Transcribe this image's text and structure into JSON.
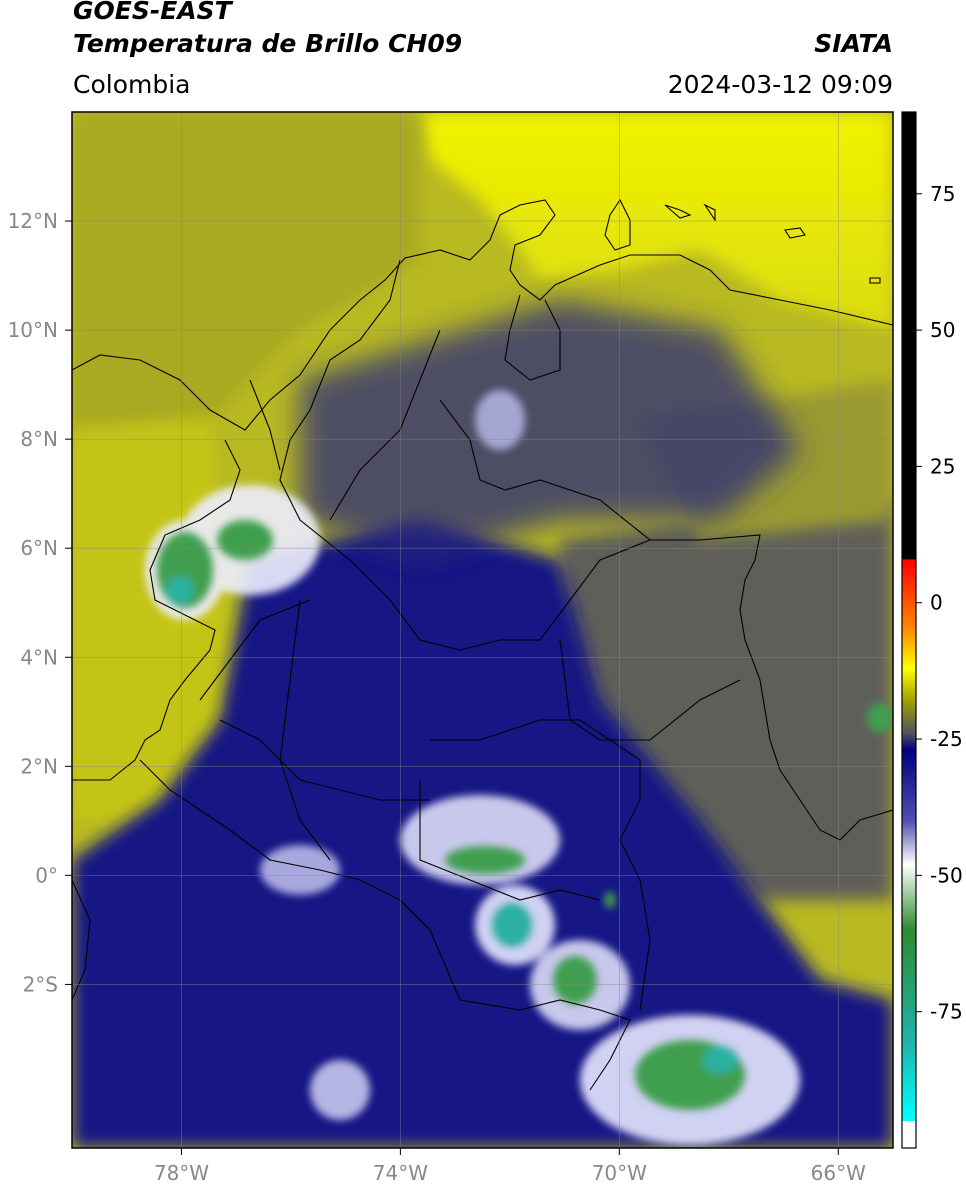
{
  "header": {
    "title_line1": "GOES-EAST",
    "title_line2": "Temperatura de Brillo CH09",
    "organization": "SIATA",
    "region": "Colombia",
    "timestamp": "2024-03-12 09:09"
  },
  "map": {
    "lon_range": [
      -80,
      -65
    ],
    "lat_range": [
      -5,
      14
    ],
    "x_ticks": [
      {
        "value": -78,
        "label": "78°W"
      },
      {
        "value": -74,
        "label": "74°W"
      },
      {
        "value": -70,
        "label": "70°W"
      },
      {
        "value": -66,
        "label": "66°W"
      }
    ],
    "y_ticks": [
      {
        "value": 12,
        "label": "12°N"
      },
      {
        "value": 10,
        "label": "10°N"
      },
      {
        "value": 8,
        "label": "8°N"
      },
      {
        "value": 6,
        "label": "6°N"
      },
      {
        "value": 4,
        "label": "4°N"
      },
      {
        "value": 2,
        "label": "2°N"
      },
      {
        "value": 0,
        "label": "0°"
      },
      {
        "value": -2,
        "label": "2°S"
      }
    ],
    "grid": true
  },
  "colorbar": {
    "range": [
      -100,
      90
    ],
    "ticks": [
      {
        "value": 75,
        "label": "75"
      },
      {
        "value": 50,
        "label": "50"
      },
      {
        "value": 25,
        "label": "25"
      },
      {
        "value": 0,
        "label": "0"
      },
      {
        "value": -25,
        "label": "-25"
      },
      {
        "value": -50,
        "label": "-50"
      },
      {
        "value": -75,
        "label": "-75"
      }
    ],
    "stops": [
      {
        "value": 90,
        "color": "#000000"
      },
      {
        "value": 8,
        "color": "#000000"
      },
      {
        "value": 7.9,
        "color": "#ff0000"
      },
      {
        "value": -5,
        "color": "#ff8c00"
      },
      {
        "value": -12,
        "color": "#ffff00"
      },
      {
        "value": -18,
        "color": "#a0a000"
      },
      {
        "value": -24,
        "color": "#505060"
      },
      {
        "value": -27,
        "color": "#000080"
      },
      {
        "value": -40,
        "color": "#5050b0"
      },
      {
        "value": -48,
        "color": "#ffffff"
      },
      {
        "value": -60,
        "color": "#2e8b2e"
      },
      {
        "value": -80,
        "color": "#20b2aa"
      },
      {
        "value": -95,
        "color": "#00ffff"
      },
      {
        "value": -95.1,
        "color": "#ffffff"
      },
      {
        "value": -100,
        "color": "#ffffff"
      }
    ]
  },
  "colors": {
    "warm_sea": "#c9c917",
    "land_mid": "#6a6a3a",
    "cold_cloud": "#1a1a8a",
    "top_cloud": "#e8e8ff",
    "deep_cloud": "#3c9a4a"
  }
}
